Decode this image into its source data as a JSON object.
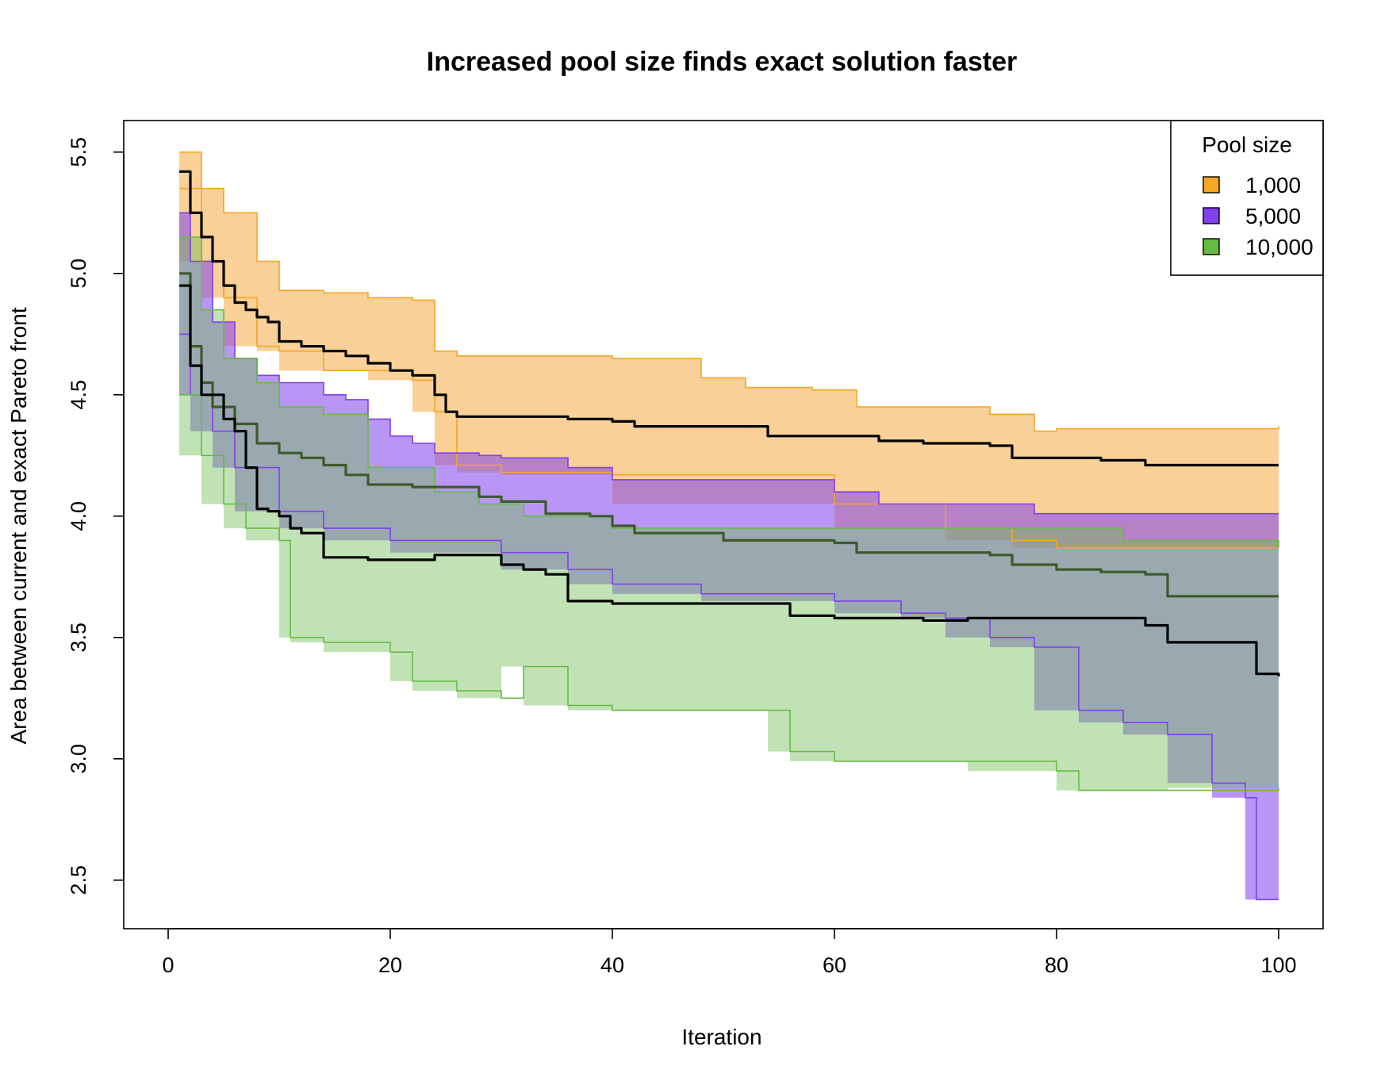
{
  "chart_data": {
    "type": "line",
    "title": "Increased pool size finds exact solution faster",
    "xlabel": "Iteration",
    "ylabel": "Area between current and exact Pareto front",
    "xlim": [
      -4,
      104
    ],
    "ylim": [
      2.3,
      5.63
    ],
    "x_ticks": [
      0,
      20,
      40,
      60,
      80,
      100
    ],
    "y_ticks": [
      2.5,
      3.0,
      3.5,
      4.0,
      4.5,
      5.0,
      5.5
    ],
    "x_tick_labels": [
      "0",
      "20",
      "40",
      "60",
      "80",
      "100"
    ],
    "y_tick_labels": [
      "2.5",
      "3.0",
      "3.5",
      "4.0",
      "4.5",
      "5.0",
      "5.5"
    ],
    "legend": {
      "title": "Pool size",
      "position": "top-right",
      "entries": [
        "1,000",
        "5,000",
        "10,000"
      ]
    },
    "series": [
      {
        "name": "1,000",
        "color": "#F5A623",
        "fill": "rgba(242,162,50,0.50)",
        "mean": [
          [
            1,
            5.42
          ],
          [
            2,
            5.25
          ],
          [
            3,
            5.15
          ],
          [
            4,
            5.05
          ],
          [
            5,
            4.95
          ],
          [
            6,
            4.88
          ],
          [
            7,
            4.85
          ],
          [
            8,
            4.82
          ],
          [
            9,
            4.8
          ],
          [
            10,
            4.72
          ],
          [
            12,
            4.7
          ],
          [
            14,
            4.68
          ],
          [
            16,
            4.66
          ],
          [
            18,
            4.63
          ],
          [
            20,
            4.6
          ],
          [
            22,
            4.58
          ],
          [
            24,
            4.5
          ],
          [
            25,
            4.43
          ],
          [
            26,
            4.41
          ],
          [
            30,
            4.41
          ],
          [
            36,
            4.4
          ],
          [
            40,
            4.39
          ],
          [
            42,
            4.37
          ],
          [
            50,
            4.37
          ],
          [
            54,
            4.33
          ],
          [
            60,
            4.33
          ],
          [
            64,
            4.31
          ],
          [
            68,
            4.3
          ],
          [
            74,
            4.29
          ],
          [
            76,
            4.24
          ],
          [
            84,
            4.23
          ],
          [
            88,
            4.21
          ],
          [
            100,
            4.21
          ]
        ],
        "upper": [
          [
            1,
            5.5
          ],
          [
            3,
            5.35
          ],
          [
            5,
            5.25
          ],
          [
            8,
            5.05
          ],
          [
            10,
            4.93
          ],
          [
            14,
            4.92
          ],
          [
            18,
            4.9
          ],
          [
            22,
            4.89
          ],
          [
            24,
            4.68
          ],
          [
            26,
            4.66
          ],
          [
            40,
            4.65
          ],
          [
            46,
            4.65
          ],
          [
            48,
            4.57
          ],
          [
            52,
            4.53
          ],
          [
            58,
            4.52
          ],
          [
            62,
            4.45
          ],
          [
            70,
            4.45
          ],
          [
            74,
            4.42
          ],
          [
            78,
            4.35
          ],
          [
            80,
            4.36
          ],
          [
            100,
            4.37
          ]
        ],
        "lower": [
          [
            1,
            5.35
          ],
          [
            3,
            5.05
          ],
          [
            5,
            4.9
          ],
          [
            8,
            4.7
          ],
          [
            10,
            4.68
          ],
          [
            14,
            4.6
          ],
          [
            18,
            4.6
          ],
          [
            22,
            4.56
          ],
          [
            24,
            4.43
          ],
          [
            26,
            4.21
          ],
          [
            30,
            4.18
          ],
          [
            40,
            4.17
          ],
          [
            60,
            4.05
          ],
          [
            70,
            3.95
          ],
          [
            76,
            3.9
          ],
          [
            80,
            3.87
          ],
          [
            100,
            3.87
          ]
        ]
      },
      {
        "name": "5,000",
        "color": "#8040EE",
        "fill": "rgba(128,64,238,0.55)",
        "mean": [
          [
            1,
            5.0
          ],
          [
            2,
            4.7
          ],
          [
            3,
            4.55
          ],
          [
            4,
            4.45
          ],
          [
            6,
            4.38
          ],
          [
            8,
            4.3
          ],
          [
            10,
            4.26
          ],
          [
            12,
            4.24
          ],
          [
            14,
            4.21
          ],
          [
            16,
            4.17
          ],
          [
            18,
            4.13
          ],
          [
            22,
            4.12
          ],
          [
            24,
            4.12
          ],
          [
            28,
            4.08
          ],
          [
            30,
            4.06
          ],
          [
            34,
            4.01
          ],
          [
            38,
            4.0
          ],
          [
            40,
            3.96
          ],
          [
            42,
            3.93
          ],
          [
            46,
            3.93
          ],
          [
            50,
            3.9
          ],
          [
            56,
            3.9
          ],
          [
            60,
            3.89
          ],
          [
            62,
            3.85
          ],
          [
            70,
            3.85
          ],
          [
            74,
            3.84
          ],
          [
            76,
            3.8
          ],
          [
            80,
            3.78
          ],
          [
            84,
            3.77
          ],
          [
            88,
            3.76
          ],
          [
            90,
            3.67
          ],
          [
            100,
            3.67
          ]
        ],
        "upper": [
          [
            1,
            5.25
          ],
          [
            2,
            5.05
          ],
          [
            4,
            4.8
          ],
          [
            6,
            4.65
          ],
          [
            8,
            4.58
          ],
          [
            10,
            4.55
          ],
          [
            14,
            4.5
          ],
          [
            16,
            4.48
          ],
          [
            18,
            4.4
          ],
          [
            20,
            4.33
          ],
          [
            22,
            4.3
          ],
          [
            24,
            4.26
          ],
          [
            28,
            4.25
          ],
          [
            30,
            4.24
          ],
          [
            36,
            4.2
          ],
          [
            40,
            4.15
          ],
          [
            56,
            4.15
          ],
          [
            60,
            4.1
          ],
          [
            64,
            4.05
          ],
          [
            70,
            4.05
          ],
          [
            78,
            4.01
          ],
          [
            100,
            4.01
          ]
        ],
        "lower": [
          [
            1,
            4.75
          ],
          [
            2,
            4.5
          ],
          [
            4,
            4.35
          ],
          [
            6,
            4.2
          ],
          [
            10,
            4.02
          ],
          [
            14,
            3.95
          ],
          [
            20,
            3.9
          ],
          [
            30,
            3.85
          ],
          [
            36,
            3.78
          ],
          [
            40,
            3.72
          ],
          [
            48,
            3.68
          ],
          [
            60,
            3.65
          ],
          [
            66,
            3.6
          ],
          [
            70,
            3.58
          ],
          [
            74,
            3.5
          ],
          [
            78,
            3.46
          ],
          [
            82,
            3.2
          ],
          [
            86,
            3.15
          ],
          [
            90,
            3.1
          ],
          [
            94,
            2.9
          ],
          [
            97,
            2.84
          ],
          [
            98,
            2.42
          ],
          [
            100,
            2.42
          ]
        ]
      },
      {
        "name": "10,000",
        "color": "#66BB44",
        "fill": "rgba(118,190,90,0.45)",
        "mean": [
          [
            1,
            4.95
          ],
          [
            2,
            4.62
          ],
          [
            3,
            4.5
          ],
          [
            5,
            4.4
          ],
          [
            6,
            4.35
          ],
          [
            7,
            4.2
          ],
          [
            8,
            4.03
          ],
          [
            9,
            4.02
          ],
          [
            10,
            4.0
          ],
          [
            11,
            3.95
          ],
          [
            12,
            3.93
          ],
          [
            14,
            3.83
          ],
          [
            16,
            3.83
          ],
          [
            18,
            3.82
          ],
          [
            22,
            3.82
          ],
          [
            24,
            3.84
          ],
          [
            28,
            3.84
          ],
          [
            30,
            3.8
          ],
          [
            32,
            3.78
          ],
          [
            34,
            3.76
          ],
          [
            36,
            3.65
          ],
          [
            40,
            3.64
          ],
          [
            54,
            3.64
          ],
          [
            56,
            3.59
          ],
          [
            60,
            3.58
          ],
          [
            66,
            3.58
          ],
          [
            68,
            3.57
          ],
          [
            72,
            3.58
          ],
          [
            80,
            3.58
          ],
          [
            86,
            3.58
          ],
          [
            88,
            3.55
          ],
          [
            90,
            3.48
          ],
          [
            96,
            3.48
          ],
          [
            98,
            3.35
          ],
          [
            100,
            3.34
          ]
        ],
        "upper": [
          [
            1,
            5.15
          ],
          [
            3,
            4.85
          ],
          [
            5,
            4.65
          ],
          [
            8,
            4.55
          ],
          [
            10,
            4.45
          ],
          [
            14,
            4.42
          ],
          [
            18,
            4.2
          ],
          [
            24,
            4.1
          ],
          [
            28,
            4.05
          ],
          [
            32,
            4.0
          ],
          [
            40,
            3.95
          ],
          [
            60,
            3.95
          ],
          [
            76,
            3.95
          ],
          [
            80,
            3.95
          ],
          [
            86,
            3.9
          ],
          [
            100,
            3.87
          ]
        ],
        "lower": [
          [
            1,
            4.5
          ],
          [
            3,
            4.25
          ],
          [
            5,
            4.05
          ],
          [
            7,
            3.95
          ],
          [
            10,
            3.9
          ],
          [
            11,
            3.5
          ],
          [
            14,
            3.48
          ],
          [
            20,
            3.44
          ],
          [
            22,
            3.32
          ],
          [
            26,
            3.28
          ],
          [
            30,
            3.25
          ],
          [
            32,
            3.38
          ],
          [
            36,
            3.22
          ],
          [
            40,
            3.2
          ],
          [
            54,
            3.2
          ],
          [
            56,
            3.03
          ],
          [
            60,
            2.99
          ],
          [
            72,
            2.99
          ],
          [
            80,
            2.95
          ],
          [
            82,
            2.87
          ],
          [
            90,
            2.87
          ],
          [
            100,
            2.88
          ]
        ]
      }
    ]
  }
}
